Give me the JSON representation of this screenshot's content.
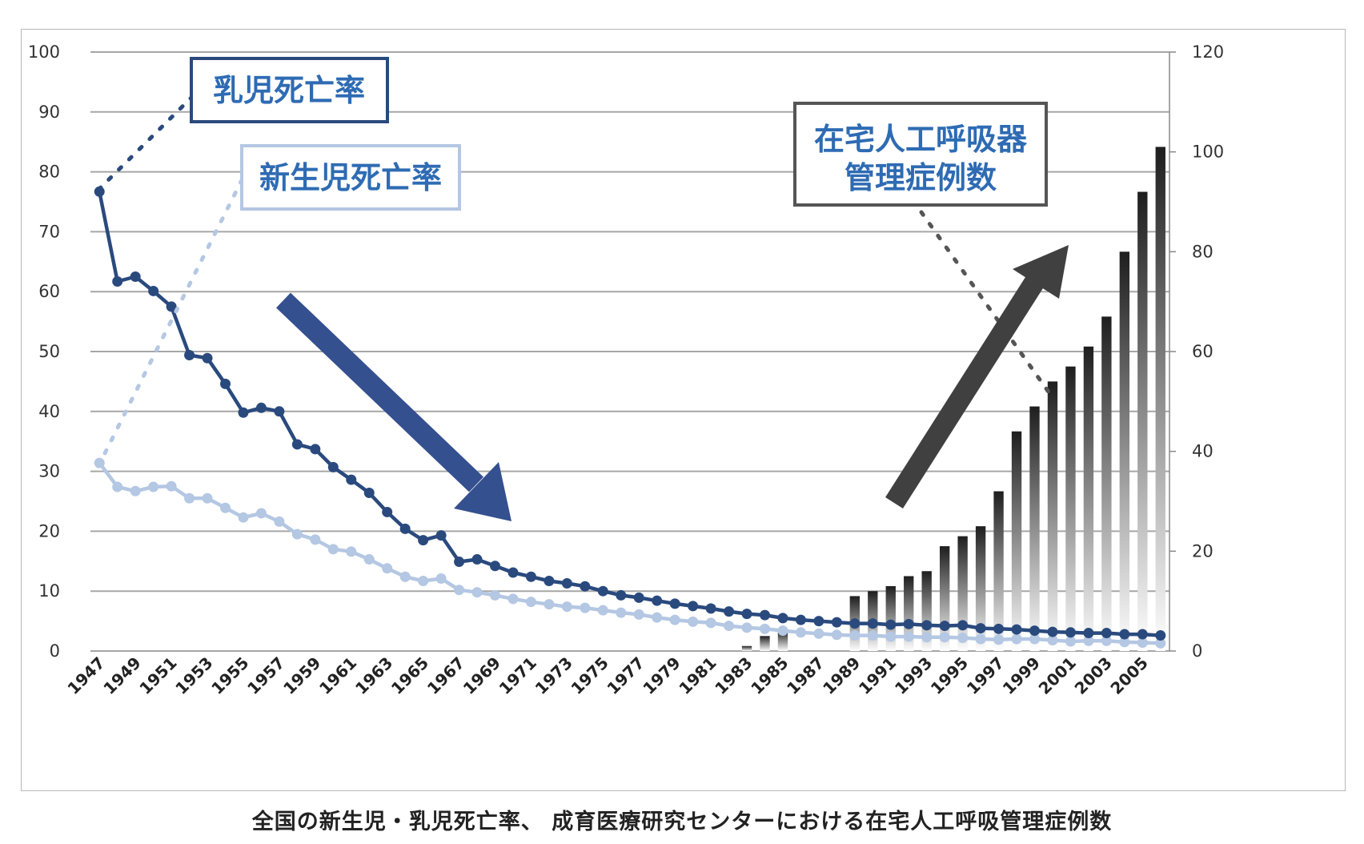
{
  "caption": "全国の新生児・乳児死亡率、 成育医療研究センターにおける在宅人工呼吸管理症例数",
  "colors": {
    "infant": "#2a4a7e",
    "neonatal": "#b4c7e3",
    "bars_dark": "#1e1e1e",
    "arrow_down": "#35508f",
    "arrow_up": "#404040",
    "grid": "#a6a6a6",
    "infant_box_border": "#2a4a7e",
    "neonatal_box_border": "#b4c7e3",
    "ventilator_box_border": "#555555",
    "label_text": "#2e6bb3"
  },
  "chart_data": {
    "type": "line",
    "x": [
      1947,
      1948,
      1949,
      1950,
      1951,
      1952,
      1953,
      1954,
      1955,
      1956,
      1957,
      1958,
      1959,
      1960,
      1961,
      1962,
      1963,
      1964,
      1965,
      1966,
      1967,
      1968,
      1969,
      1970,
      1971,
      1972,
      1973,
      1974,
      1975,
      1976,
      1977,
      1978,
      1979,
      1980,
      1981,
      1982,
      1983,
      1984,
      1985,
      1986,
      1987,
      1988,
      1989,
      1990,
      1991,
      1992,
      1993,
      1994,
      1995,
      1996,
      1997,
      1998,
      1999,
      2000,
      2001,
      2002,
      2003,
      2004,
      2005,
      2006
    ],
    "x_tick_labels": [
      "1947",
      "1949",
      "1951",
      "1953",
      "1955",
      "1957",
      "1959",
      "1961",
      "1963",
      "1965",
      "1967",
      "1969",
      "1971",
      "1973",
      "1975",
      "1977",
      "1979",
      "1981",
      "1983",
      "1985",
      "1987",
      "1989",
      "1991",
      "1993",
      "1995",
      "1997",
      "1999",
      "2001",
      "2003",
      "2005"
    ],
    "y_left_ticks": [
      "0",
      "10",
      "20",
      "30",
      "40",
      "50",
      "60",
      "70",
      "80",
      "90",
      "100"
    ],
    "y_right_ticks": [
      "0",
      "20",
      "40",
      "60",
      "80",
      "100",
      "120"
    ],
    "ylim_left": [
      0,
      100
    ],
    "ylim_right": [
      0,
      120
    ],
    "grid": true,
    "series": [
      {
        "name": "乳児死亡率",
        "axis": "left",
        "values": [
          76.7,
          61.7,
          62.5,
          60.1,
          57.5,
          49.4,
          48.9,
          44.6,
          39.8,
          40.6,
          40.0,
          34.5,
          33.7,
          30.7,
          28.6,
          26.4,
          23.2,
          20.4,
          18.5,
          19.3,
          14.9,
          15.3,
          14.2,
          13.1,
          12.4,
          11.7,
          11.3,
          10.8,
          10.0,
          9.3,
          8.9,
          8.4,
          7.9,
          7.5,
          7.1,
          6.6,
          6.2,
          6.0,
          5.5,
          5.2,
          5.0,
          4.8,
          4.6,
          4.6,
          4.4,
          4.5,
          4.3,
          4.2,
          4.3,
          3.8,
          3.7,
          3.6,
          3.4,
          3.2,
          3.1,
          3.0,
          3.0,
          2.8,
          2.8,
          2.6
        ]
      },
      {
        "name": "新生児死亡率",
        "axis": "left",
        "values": [
          31.4,
          27.4,
          26.7,
          27.4,
          27.5,
          25.5,
          25.5,
          23.9,
          22.3,
          23.0,
          21.6,
          19.5,
          18.6,
          17.0,
          16.6,
          15.3,
          13.8,
          12.4,
          11.7,
          12.1,
          10.2,
          9.8,
          9.3,
          8.7,
          8.2,
          7.8,
          7.4,
          7.2,
          6.8,
          6.4,
          6.1,
          5.6,
          5.2,
          4.9,
          4.7,
          4.2,
          3.9,
          3.7,
          3.4,
          3.1,
          2.9,
          2.7,
          2.6,
          2.6,
          2.4,
          2.4,
          2.3,
          2.3,
          2.2,
          2.0,
          1.9,
          2.0,
          2.0,
          1.8,
          1.6,
          1.7,
          1.7,
          1.5,
          1.4,
          1.3
        ]
      },
      {
        "name": "在宅人工呼吸器管理症例数",
        "axis": "right",
        "type": "bar",
        "values": [
          0,
          0,
          0,
          0,
          0,
          0,
          0,
          0,
          0,
          0,
          0,
          0,
          0,
          0,
          0,
          0,
          0,
          0,
          0,
          0,
          0,
          0,
          0,
          0,
          0,
          0,
          0,
          0,
          0,
          0,
          0,
          0,
          0,
          0,
          0,
          0,
          1,
          3,
          4,
          0,
          0,
          0,
          11,
          12,
          13,
          15,
          16,
          21,
          23,
          25,
          32,
          44,
          49,
          54,
          57,
          61,
          67,
          80,
          92,
          101
        ]
      }
    ]
  },
  "labels": {
    "infant": "乳児死亡率",
    "neonatal": "新生児死亡率",
    "ventilator_line1": "在宅人工呼吸器",
    "ventilator_line2": "管理症例数"
  }
}
